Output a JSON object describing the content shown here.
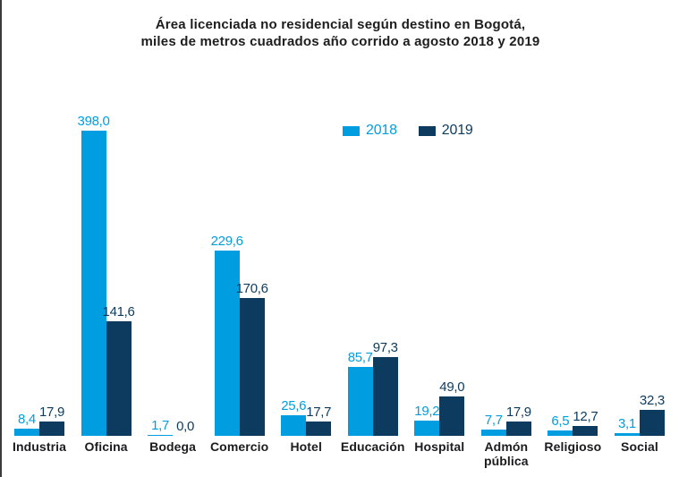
{
  "chart_data": {
    "type": "bar",
    "title_line1": "Área licenciada no residencial según destino en Bogotá,",
    "title_line2": "miles de metros cuadrados año corrido a agosto 2018 y 2019",
    "categories": [
      "Industria",
      "Oficina",
      "Bodega",
      "Comercio",
      "Hotel",
      "Educación",
      "Hospital",
      "Admón\npública",
      "Religioso",
      "Social"
    ],
    "series": [
      {
        "name": "2018",
        "color": "#009EE0",
        "values": [
          8.4,
          398.0,
          1.7,
          229.6,
          25.6,
          85.7,
          19.2,
          7.7,
          6.5,
          3.1
        ],
        "value_labels": [
          "8,4",
          "398,0",
          "1,7",
          "229,6",
          "25,6",
          "85,7",
          "19,2",
          "7,7",
          "6,5",
          "3,1"
        ]
      },
      {
        "name": "2019",
        "color": "#0C3B5F",
        "values": [
          17.9,
          141.6,
          0.0,
          170.6,
          17.7,
          97.3,
          49.0,
          17.9,
          12.7,
          32.3
        ],
        "value_labels": [
          "17,9",
          "141,6",
          "0,0",
          "170,6",
          "17,7",
          "97,3",
          "49,0",
          "17,9",
          "12,7",
          "32,3"
        ]
      }
    ],
    "ylim": [
      0,
      398
    ],
    "grid": false,
    "axes_visible": false,
    "legend_position": "top-center",
    "value_labels_shown": true,
    "decimal_separator": ","
  },
  "colors": {
    "series_2018": "#009EE0",
    "series_2019": "#0C3B5F",
    "title_text": "#1d1d1d",
    "category_label_text": "#1c1c1e",
    "frame_left_border": "#3b3b3b",
    "background": "#ffffff"
  }
}
